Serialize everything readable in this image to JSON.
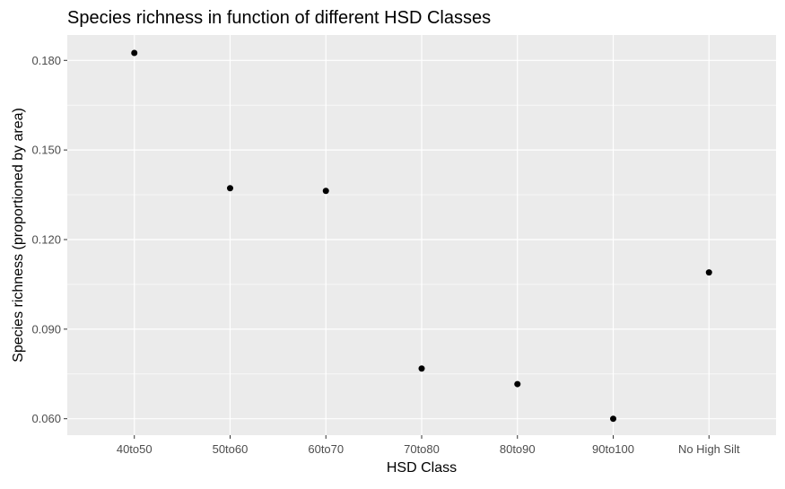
{
  "chart_data": {
    "type": "scatter",
    "title": "Species richness in function of different HSD Classes",
    "xlabel": "HSD Class",
    "ylabel": "Species richness (proportioned by area)",
    "categories": [
      "40to50",
      "50to60",
      "60to70",
      "70to80",
      "80to90",
      "90to100",
      "No High Silt"
    ],
    "values": [
      0.1825,
      0.1372,
      0.1363,
      0.0768,
      0.0716,
      0.06,
      0.109
    ],
    "yticks": [
      0.06,
      0.09,
      0.12,
      0.15,
      0.18
    ],
    "ytick_labels": [
      "0.060",
      "0.090",
      "0.120",
      "0.150",
      "0.180"
    ],
    "ylim": [
      0.0545,
      0.1885
    ],
    "grid": true,
    "colors": {
      "panel_background": "#ebebeb",
      "grid": "#ffffff",
      "point": "#000000",
      "tick_label": "#4d4d4d",
      "tick_mark": "#333333"
    }
  }
}
